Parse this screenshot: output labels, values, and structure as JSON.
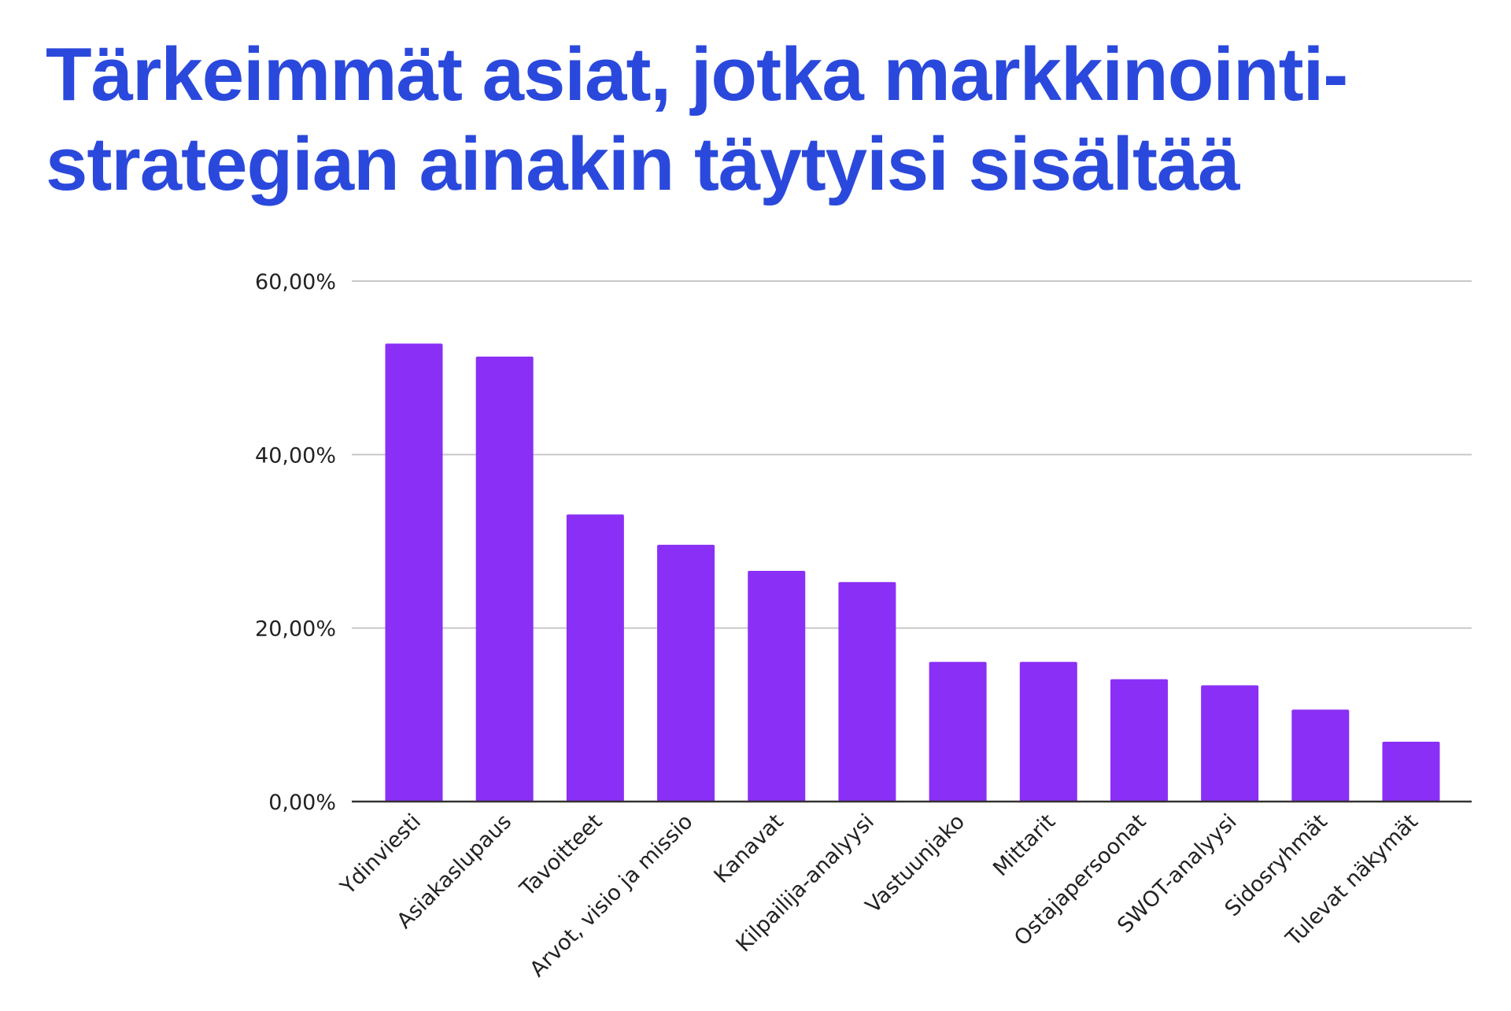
{
  "title_line1": "Tärkeimmät asiat, jotka markkinointi-",
  "title_line2": "strategian ainakin täytyisi sisältää",
  "colors": {
    "title": "#2a49dc",
    "bar": "#8a2ff5",
    "grid": "#c8c8c8",
    "axis": "#333333"
  },
  "chart_data": {
    "type": "bar",
    "categories": [
      "Ydinviesti",
      "Asiakaslupaus",
      "Tavoitteet",
      "Arvot, visio ja missio",
      "Kanavat",
      "Kilpailija-analyysi",
      "Vastuunjako",
      "Mittarit",
      "Ostajapersoonat",
      "SWOT-analyysi",
      "Sidosryhmät",
      "Tulevat näkymät"
    ],
    "values": [
      52.8,
      51.3,
      33.1,
      29.6,
      26.6,
      25.3,
      16.1,
      16.1,
      14.1,
      13.4,
      10.6,
      6.9
    ],
    "yticks": [
      "0,00%",
      "20,00%",
      "40,00%",
      "60,00%"
    ],
    "ylim": [
      0,
      60
    ],
    "grid": true
  }
}
